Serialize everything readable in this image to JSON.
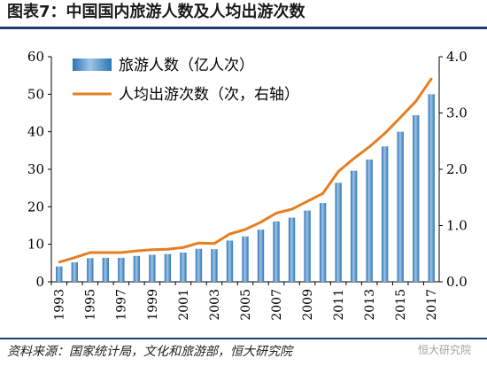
{
  "page": {
    "title": "图表7：中国国内旅游人数及人均出游次数",
    "source": "资料来源：国家统计局，文化和旅游部，恒大研究院",
    "watermark": "恒大研究院"
  },
  "chart_data": {
    "type": "bar",
    "title": "",
    "xlabel": "",
    "ylabel": "",
    "categories": [
      "1993",
      "1994",
      "1995",
      "1996",
      "1997",
      "1998",
      "1999",
      "2000",
      "2001",
      "2002",
      "2003",
      "2004",
      "2005",
      "2006",
      "2007",
      "2008",
      "2009",
      "2010",
      "2011",
      "2012",
      "2013",
      "2014",
      "2015",
      "2016",
      "2017"
    ],
    "x_tick_labels": [
      "1993",
      "1995",
      "1997",
      "1999",
      "2001",
      "2003",
      "2005",
      "2007",
      "2009",
      "2011",
      "2013",
      "2015",
      "2017"
    ],
    "ylim": [
      0,
      60
    ],
    "y_ticks": [
      "0",
      "10",
      "20",
      "30",
      "40",
      "50",
      "60"
    ],
    "y2lim": [
      0,
      4
    ],
    "y2_ticks": [
      "0.0",
      "1.0",
      "2.0",
      "3.0",
      "4.0"
    ],
    "legend_position": "top-left",
    "grid": false,
    "series": [
      {
        "name": "旅游人数（亿人次）",
        "type": "bar",
        "axis": "left",
        "color": "#5b9bd5",
        "values": [
          4.1,
          5.2,
          6.3,
          6.4,
          6.4,
          6.9,
          7.2,
          7.4,
          7.8,
          8.8,
          8.7,
          11.0,
          12.1,
          13.9,
          16.1,
          17.1,
          19.0,
          21.0,
          26.4,
          29.6,
          32.6,
          36.1,
          40.0,
          44.4,
          50.0
        ]
      },
      {
        "name": "人均出游次数（次，右轴）",
        "type": "line",
        "axis": "right",
        "color": "#e67e22",
        "values": [
          0.35,
          0.43,
          0.52,
          0.52,
          0.52,
          0.55,
          0.57,
          0.58,
          0.61,
          0.69,
          0.68,
          0.85,
          0.93,
          1.06,
          1.22,
          1.29,
          1.43,
          1.57,
          1.96,
          2.19,
          2.4,
          2.64,
          2.92,
          3.21,
          3.61
        ]
      }
    ]
  }
}
